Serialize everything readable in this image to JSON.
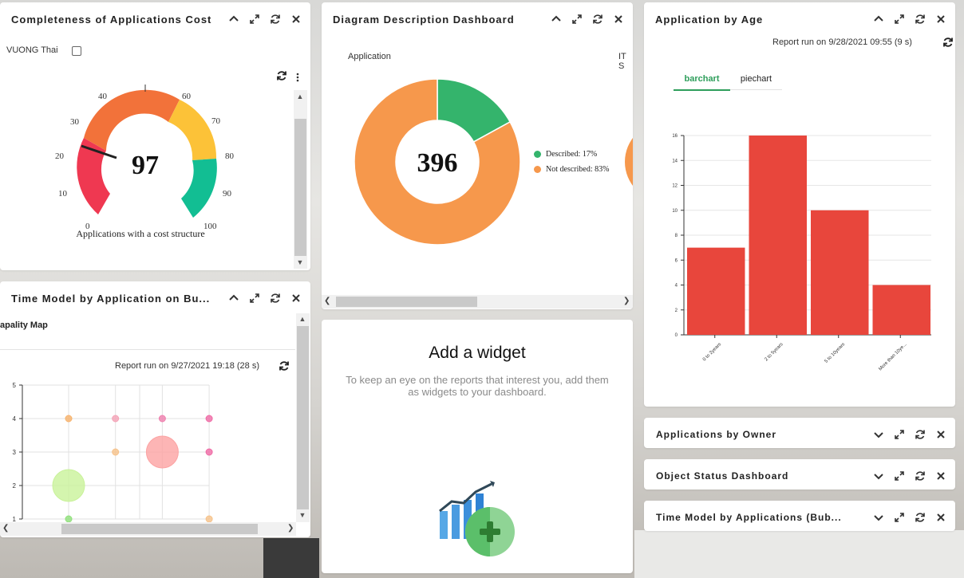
{
  "panels": {
    "cost": {
      "title": "Completeness of Applications Cost",
      "user_filter": "VUONG Thai",
      "gauge": {
        "value_label": "97",
        "caption": "Applications with a cost structure",
        "ticks": [
          "0",
          "10",
          "20",
          "30",
          "40",
          "60",
          "70",
          "80",
          "90",
          "100"
        ],
        "band_colors": [
          "#ef3851",
          "#f2723a",
          "#fcc238",
          "#12be93"
        ]
      }
    },
    "diagram": {
      "title": "Diagram Description Dashboard",
      "column_label": "Application",
      "column_label_2": "IT S",
      "donut": {
        "center_label": "396",
        "legend": [
          {
            "label": "Described: 17%",
            "color": "#34b46c",
            "fraction": 0.17
          },
          {
            "label": "Not described: 83%",
            "color": "#f6984c",
            "fraction": 0.83
          }
        ]
      }
    },
    "age": {
      "title": "Application by Age",
      "report_run": "Report run on 9/28/2021 09:55 (9 s)",
      "tabs": [
        {
          "label": "barchart",
          "active": true
        },
        {
          "label": "piechart",
          "active": false
        }
      ]
    },
    "timemodel": {
      "title": "Time Model by Application on Bu...",
      "subtitle": "apality Map",
      "report_run": "Report run on 9/27/2021 19:18 (28 s)"
    },
    "add_widget": {
      "title": "Add a widget",
      "description": "To keep an eye on the reports that interest you, add them as widgets to your dashboard."
    },
    "owner": {
      "title": "Applications by Owner"
    },
    "status": {
      "title": "Object Status Dashboard"
    },
    "timemodel2": {
      "title": "Time Model by Applications (Bub..."
    }
  },
  "chart_data": [
    {
      "type": "bar",
      "title": "",
      "categories": [
        "0 to 2years",
        "2 to 5years",
        "5 to 10years",
        "More than 10ye..."
      ],
      "values": [
        7,
        16,
        10,
        4
      ],
      "ylim": [
        0,
        16
      ],
      "yticks": [
        "0",
        "2",
        "4",
        "6",
        "8",
        "10",
        "12",
        "14",
        "16"
      ],
      "color": "#e8463c",
      "grid": true
    },
    {
      "type": "scatter",
      "title": "",
      "ylim": [
        1,
        5
      ],
      "yticks": [
        "1",
        "2",
        "3",
        "4",
        "5"
      ],
      "points": [
        {
          "x": 1,
          "y": 4,
          "size": 4,
          "color": "#f6b26b"
        },
        {
          "x": 2,
          "y": 4,
          "size": 4,
          "color": "#f4a3b6"
        },
        {
          "x": 3,
          "y": 4,
          "size": 4,
          "color": "#ef7fae"
        },
        {
          "x": 4,
          "y": 4,
          "size": 4,
          "color": "#ef6aa5"
        },
        {
          "x": 2,
          "y": 3,
          "size": 4,
          "color": "#f6c28a"
        },
        {
          "x": 3,
          "y": 3,
          "size": 20,
          "color": "#fca3a3"
        },
        {
          "x": 4,
          "y": 3,
          "size": 4,
          "color": "#ef6aa5"
        },
        {
          "x": 1,
          "y": 2,
          "size": 20,
          "color": "#c9f29a"
        },
        {
          "x": 1,
          "y": 1,
          "size": 4,
          "color": "#8fe07a"
        },
        {
          "x": 4,
          "y": 1,
          "size": 4,
          "color": "#f6c28a"
        }
      ]
    },
    {
      "type": "pie",
      "title": "",
      "center_label": "396",
      "slices": [
        {
          "label": "Described: 17%",
          "value": 17,
          "color": "#34b46c"
        },
        {
          "label": "Not described: 83%",
          "value": 83,
          "color": "#f6984c"
        }
      ]
    }
  ]
}
